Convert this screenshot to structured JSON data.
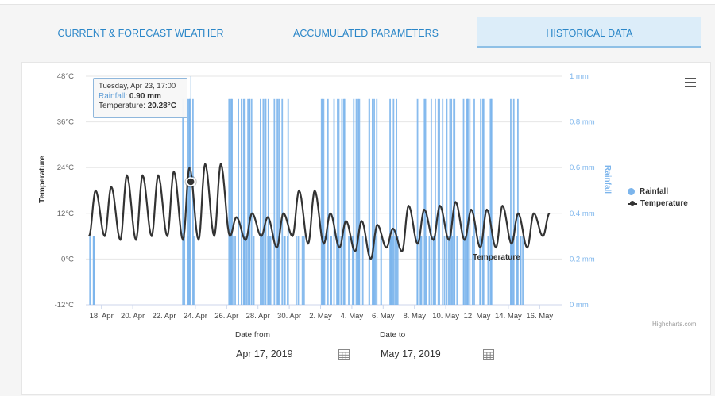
{
  "tabs": [
    {
      "label": "CURRENT & FORECAST WEATHER",
      "active": false
    },
    {
      "label": "ACCUMULATED PARAMETERS",
      "active": false
    },
    {
      "label": "HISTORICAL DATA",
      "active": true
    }
  ],
  "tooltip": {
    "date": "Tuesday, Apr 23, 17:00",
    "rain_label": "Rainfall",
    "rain_value": "0.90 mm",
    "temp_label": "Temperature",
    "temp_value": "20.28°C"
  },
  "legend": {
    "rainfall": "Rainfall",
    "temperature": "Temperature"
  },
  "series_label": "Temperature",
  "credits": "Highcharts.com",
  "icons": {
    "menu": "hamburger-menu-icon",
    "calendar": "calendar-icon"
  },
  "date_from": {
    "label": "Date from",
    "value": "Apr 17, 2019"
  },
  "date_to": {
    "label": "Date to",
    "value": "May 17, 2019"
  },
  "colors": {
    "accent": "#2a86c8",
    "rain": "#7cb5ec",
    "temp": "#333333"
  },
  "chart_data": {
    "type": "line",
    "x_range": [
      "2019-04-17",
      "2019-05-17"
    ],
    "y_left": {
      "label": "Temperature",
      "ticks": [
        "48°C",
        "36°C",
        "24°C",
        "12°C",
        "0°C",
        "-12°C"
      ],
      "range": [
        -12,
        48
      ]
    },
    "y_right": {
      "label": "Rainfall",
      "ticks": [
        "1 mm",
        "0.8 mm",
        "0.6 mm",
        "0.4 mm",
        "0.2 mm",
        "0 mm"
      ],
      "range": [
        0,
        1
      ]
    },
    "x_ticks": [
      "18. Apr",
      "20. Apr",
      "22. Apr",
      "24. Apr",
      "26. Apr",
      "28. Apr",
      "30. Apr",
      "2. May",
      "4. May",
      "6. May",
      "8. May",
      "10. May",
      "12. May",
      "14. May",
      "16. May"
    ],
    "grid": true,
    "legend_position": "right",
    "temperature_daily": [
      {
        "date": "2019-04-17",
        "min": 6,
        "max": 18
      },
      {
        "date": "2019-04-18",
        "min": 6,
        "max": 19
      },
      {
        "date": "2019-04-19",
        "min": 5,
        "max": 22
      },
      {
        "date": "2019-04-20",
        "min": 5,
        "max": 22
      },
      {
        "date": "2019-04-21",
        "min": 6,
        "max": 22
      },
      {
        "date": "2019-04-22",
        "min": 6,
        "max": 23
      },
      {
        "date": "2019-04-23",
        "min": 5,
        "max": 24
      },
      {
        "date": "2019-04-24",
        "min": 5,
        "max": 25
      },
      {
        "date": "2019-04-25",
        "min": 6,
        "max": 25
      },
      {
        "date": "2019-04-26",
        "min": 6,
        "max": 11
      },
      {
        "date": "2019-04-27",
        "min": 5,
        "max": 12
      },
      {
        "date": "2019-04-28",
        "min": 6,
        "max": 11
      },
      {
        "date": "2019-04-29",
        "min": 3,
        "max": 12
      },
      {
        "date": "2019-04-30",
        "min": 6,
        "max": 18
      },
      {
        "date": "2019-05-01",
        "min": 4,
        "max": 18
      },
      {
        "date": "2019-05-02",
        "min": 4,
        "max": 12
      },
      {
        "date": "2019-05-03",
        "min": 3,
        "max": 10
      },
      {
        "date": "2019-05-04",
        "min": 2,
        "max": 10
      },
      {
        "date": "2019-05-05",
        "min": 0,
        "max": 9
      },
      {
        "date": "2019-05-06",
        "min": 3,
        "max": 8
      },
      {
        "date": "2019-05-07",
        "min": 2,
        "max": 14
      },
      {
        "date": "2019-05-08",
        "min": 4,
        "max": 13
      },
      {
        "date": "2019-05-09",
        "min": 5,
        "max": 14
      },
      {
        "date": "2019-05-10",
        "min": 5,
        "max": 15
      },
      {
        "date": "2019-05-11",
        "min": 5,
        "max": 13
      },
      {
        "date": "2019-05-12",
        "min": 3,
        "max": 13
      },
      {
        "date": "2019-05-13",
        "min": 3,
        "max": 14
      },
      {
        "date": "2019-05-14",
        "min": 4,
        "max": 12
      },
      {
        "date": "2019-05-15",
        "min": 3,
        "max": 12
      },
      {
        "date": "2019-05-16",
        "min": 6,
        "max": 12
      }
    ],
    "rainfall_peaks": [
      {
        "date": "2019-04-17",
        "mm": 0.3
      },
      {
        "date": "2019-04-23",
        "mm": 0.9
      },
      {
        "date": "2019-04-26",
        "mm": 0.9
      },
      {
        "date": "2019-04-27",
        "mm": 0.9
      },
      {
        "date": "2019-04-28",
        "mm": 0.9
      },
      {
        "date": "2019-04-29",
        "mm": 0.9
      },
      {
        "date": "2019-04-30",
        "mm": 0.3
      },
      {
        "date": "2019-05-02",
        "mm": 0.9
      },
      {
        "date": "2019-05-03",
        "mm": 0.9
      },
      {
        "date": "2019-05-04",
        "mm": 0.9
      },
      {
        "date": "2019-05-05",
        "mm": 0.9
      },
      {
        "date": "2019-05-06",
        "mm": 0.9
      },
      {
        "date": "2019-05-08",
        "mm": 0.9
      },
      {
        "date": "2019-05-09",
        "mm": 0.9
      },
      {
        "date": "2019-05-10",
        "mm": 0.9
      },
      {
        "date": "2019-05-11",
        "mm": 0.9
      },
      {
        "date": "2019-05-12",
        "mm": 0.9
      },
      {
        "date": "2019-05-14",
        "mm": 0.9
      }
    ]
  }
}
